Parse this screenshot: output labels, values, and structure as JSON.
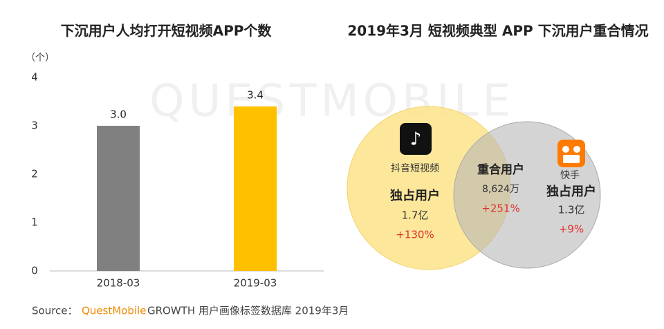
{
  "chart_data": [
    {
      "type": "bar",
      "title": "下沉用户人均打开短视频APP个数",
      "y_label": "（个）",
      "categories": [
        "2018-03",
        "2019-03"
      ],
      "values": [
        3.0,
        3.4
      ],
      "value_labels": [
        "3.0",
        "3.4"
      ],
      "colors": [
        "#808080",
        "#ffc000"
      ],
      "ylim": [
        0,
        4
      ],
      "yticks": [
        0,
        1,
        2,
        3,
        4
      ],
      "grid": false
    },
    {
      "type": "venn",
      "title": "2019年3月 短视频典型 APP 下沉用户重合情况",
      "left": {
        "name": "抖音短视频",
        "label": "独占用户",
        "amount": "1.7亿",
        "growth": "+130%",
        "color": "#fce38a"
      },
      "overlap": {
        "label": "重合用户",
        "amount": "8,624万",
        "growth": "+251%"
      },
      "right": {
        "name": "快手",
        "label": "独占用户",
        "amount": "1.3亿",
        "growth": "+9%",
        "color": "#c9c9c9"
      }
    }
  ],
  "watermark": "QUESTMOBILE",
  "source": {
    "prefix": "Source：",
    "brand": "QuestMobile",
    "text": "GROWTH 用户画像标签数据库 2019年3月"
  }
}
